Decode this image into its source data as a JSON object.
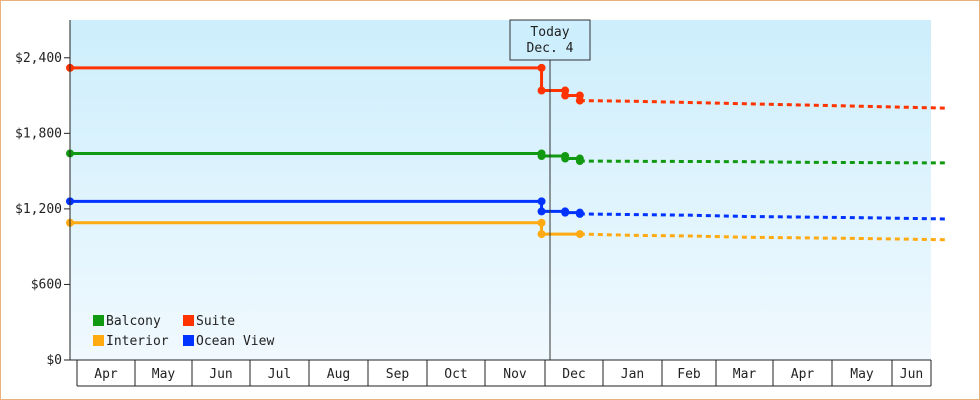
{
  "chart_data": {
    "type": "line",
    "y_ticks": [
      "$0",
      "$600",
      "$1,200",
      "$1,800",
      "$2,400"
    ],
    "ylim": [
      0,
      2700
    ],
    "x_ticks": [
      "Apr",
      "May",
      "Jun",
      "Jul",
      "Aug",
      "Sep",
      "Oct",
      "Nov",
      "Dec",
      "Jan",
      "Feb",
      "Mar",
      "Apr",
      "May",
      "Jun"
    ],
    "today_label": [
      "Today",
      "Dec. 4"
    ],
    "legend": [
      "Balcony",
      "Suite",
      "Interior",
      "Ocean View"
    ],
    "series": [
      {
        "name": "Suite",
        "color": "#ff3300",
        "history": [
          [
            0,
            2320
          ],
          [
            7.45,
            2320
          ],
          [
            7.45,
            2140
          ],
          [
            7.85,
            2140
          ],
          [
            7.85,
            2100
          ],
          [
            8.1,
            2100
          ],
          [
            8.1,
            2060
          ]
        ],
        "forecast": [
          [
            8.1,
            2060
          ],
          [
            9.0,
            2055
          ],
          [
            10.0,
            2045
          ],
          [
            11.0,
            2035
          ],
          [
            12.0,
            2025
          ],
          [
            13.0,
            2015
          ],
          [
            14.7,
            2000
          ]
        ]
      },
      {
        "name": "Balcony",
        "color": "#119911",
        "history": [
          [
            0,
            1640
          ],
          [
            7.45,
            1640
          ],
          [
            7.45,
            1620
          ],
          [
            7.85,
            1620
          ],
          [
            7.85,
            1600
          ],
          [
            8.1,
            1600
          ],
          [
            8.1,
            1580
          ]
        ],
        "forecast": [
          [
            8.1,
            1580
          ],
          [
            9.0,
            1578
          ],
          [
            11.0,
            1575
          ],
          [
            12.0,
            1570
          ],
          [
            14.7,
            1565
          ]
        ]
      },
      {
        "name": "Ocean View",
        "color": "#0033ff",
        "history": [
          [
            0,
            1260
          ],
          [
            7.45,
            1260
          ],
          [
            7.45,
            1180
          ],
          [
            7.85,
            1180
          ],
          [
            7.85,
            1170
          ],
          [
            8.1,
            1170
          ],
          [
            8.1,
            1160
          ]
        ],
        "forecast": [
          [
            8.1,
            1160
          ],
          [
            9.0,
            1155
          ],
          [
            10.0,
            1150
          ],
          [
            11.0,
            1140
          ],
          [
            13.0,
            1130
          ],
          [
            14.7,
            1120
          ]
        ]
      },
      {
        "name": "Interior",
        "color": "#ffaa11",
        "history": [
          [
            0,
            1090
          ],
          [
            7.45,
            1090
          ],
          [
            7.45,
            1000
          ],
          [
            8.1,
            1000
          ]
        ],
        "forecast": [
          [
            8.1,
            1000
          ],
          [
            9.0,
            990
          ],
          [
            10.0,
            985
          ],
          [
            11.0,
            975
          ],
          [
            12.0,
            970
          ],
          [
            13.0,
            965
          ],
          [
            14.7,
            955
          ]
        ]
      }
    ]
  }
}
